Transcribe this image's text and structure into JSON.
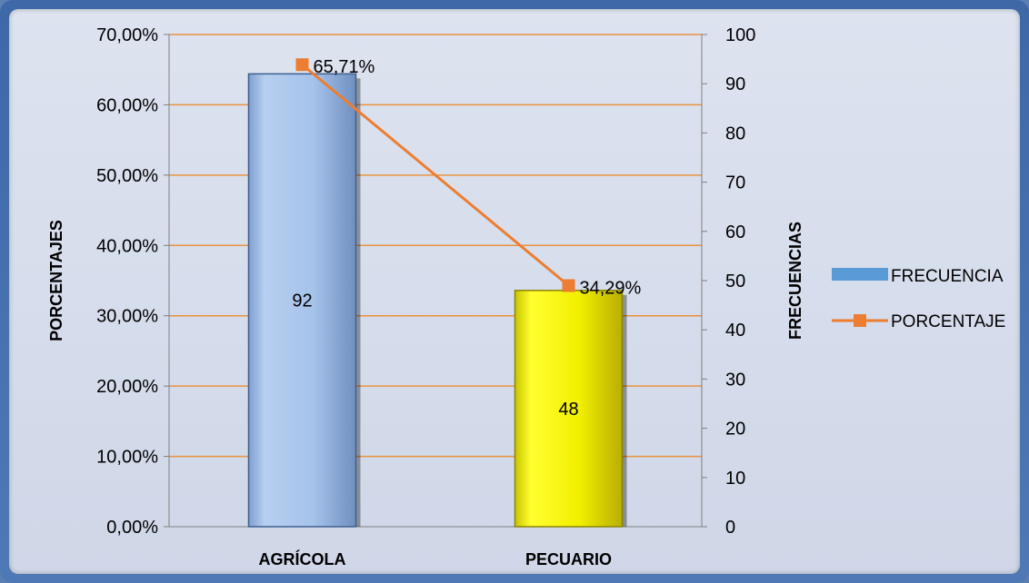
{
  "chart_data": {
    "type": "bar",
    "categories": [
      "AGRÍCOLA",
      "PECUARIO"
    ],
    "series": [
      {
        "name": "FRECUENCIA",
        "type": "bar",
        "axis": "right",
        "values": [
          92,
          48
        ],
        "labels": [
          "92",
          "48"
        ],
        "colors": [
          "#a9c6ec",
          "#f2f000"
        ]
      },
      {
        "name": "PORCENTAJE",
        "type": "line",
        "axis": "left",
        "values": [
          65.71,
          34.29
        ],
        "labels": [
          "65,71%",
          "34,29%"
        ],
        "color": "#ed7d31"
      }
    ],
    "y_left": {
      "label": "PORCENTAJES",
      "range": [
        0,
        70
      ],
      "ticks": [
        "0,00%",
        "10,00%",
        "20,00%",
        "30,00%",
        "40,00%",
        "50,00%",
        "60,00%",
        "70,00%"
      ]
    },
    "y_right": {
      "label": "FRECUENCIAS",
      "range": [
        0,
        100
      ],
      "ticks": [
        "0",
        "10",
        "20",
        "30",
        "40",
        "50",
        "60",
        "70",
        "80",
        "90",
        "100"
      ]
    },
    "grid": true,
    "grid_color": "#e8923e",
    "legend_position": "right"
  }
}
